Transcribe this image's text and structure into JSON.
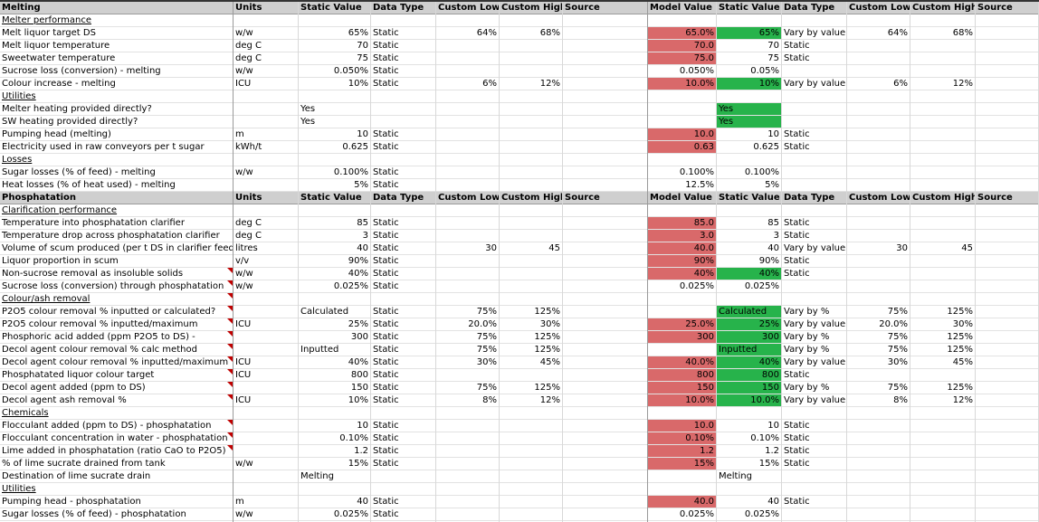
{
  "columns": {
    "c0": {
      "left": 0,
      "width": 258
    },
    "c1": {
      "left": 258,
      "width": 72
    },
    "c2": {
      "left": 330,
      "width": 80
    },
    "c3": {
      "left": 410,
      "width": 72
    },
    "c4": {
      "left": 482,
      "width": 70
    },
    "c5": {
      "left": 552,
      "width": 70
    },
    "c6": {
      "left": 622,
      "width": 94
    },
    "c7": {
      "left": 716,
      "width": 76
    },
    "c8": {
      "left": 792,
      "width": 72
    },
    "c9": {
      "left": 864,
      "width": 72
    },
    "c10": {
      "left": 936,
      "width": 70
    },
    "c11": {
      "left": 1006,
      "width": 72
    },
    "c12": {
      "left": 1078,
      "width": 70
    }
  },
  "rows": [
    {
      "type": "hdr",
      "c0": "Melting",
      "c1": "Units",
      "c2": "Static Value",
      "c3": "Data Type",
      "c4": "Custom Low",
      "c5": "Custom High",
      "c6": "Source",
      "c7": "Model Value",
      "c8": "Static Value",
      "c9": "Data Type",
      "c10": "Custom Low",
      "c11": "Custom High",
      "c12": "Source"
    },
    {
      "type": "sub",
      "c0": "Melter performance"
    },
    {
      "c0": "Melt liquor target DS",
      "c1": "w/w",
      "c2": "65%",
      "c3": "Static",
      "c4": "64%",
      "c5": "68%",
      "c7": "65.0%",
      "c7c": "red",
      "c8": "65%",
      "c8c": "green",
      "c9": "Vary by value",
      "c10": "64%",
      "c11": "68%"
    },
    {
      "c0": "Melt liquor temperature",
      "c1": "deg C",
      "c2": "70",
      "c3": "Static",
      "c7": "70.0",
      "c7c": "red",
      "c8": "70",
      "c9": "Static"
    },
    {
      "c0": "Sweetwater temperature",
      "c1": "deg C",
      "c2": "75",
      "c3": "Static",
      "c7": "75.0",
      "c7c": "red",
      "c8": "75",
      "c9": "Static"
    },
    {
      "c0": "Sucrose loss (conversion) - melting",
      "c1": "w/w",
      "c2": "0.050%",
      "c3": "Static",
      "c7": "0.050%",
      "c8": "0.05%"
    },
    {
      "c0": "Colour increase - melting",
      "c1": "ICU",
      "c2": "10%",
      "c3": "Static",
      "c4": "6%",
      "c5": "12%",
      "c7": "10.0%",
      "c7c": "red",
      "c8": "10%",
      "c8c": "green",
      "c9": "Vary by value",
      "c10": "6%",
      "c11": "12%"
    },
    {
      "type": "sub",
      "c0": "Utilities"
    },
    {
      "c0": "Melter heating provided directly?",
      "c2": "Yes",
      "c2a": "l",
      "c8": "Yes",
      "c8a": "l",
      "c8c": "green"
    },
    {
      "c0": "SW heating provided directly?",
      "c2": "Yes",
      "c2a": "l",
      "c8": "Yes",
      "c8a": "l",
      "c8c": "green"
    },
    {
      "c0": "Pumping head (melting)",
      "c1": "m",
      "c2": "10",
      "c3": "Static",
      "c7": "10.0",
      "c7c": "red",
      "c8": "10",
      "c9": "Static"
    },
    {
      "c0": "Electricity used in raw conveyors per t sugar",
      "c1": "kWh/t",
      "c2": "0.625",
      "c3": "Static",
      "c7": "0.63",
      "c7c": "red",
      "c8": "0.625",
      "c9": "Static"
    },
    {
      "type": "sub",
      "c0": "Losses"
    },
    {
      "c0": "Sugar losses (% of feed) - melting",
      "c1": "w/w",
      "c2": "0.100%",
      "c3": "Static",
      "c7": "0.100%",
      "c8": "0.100%"
    },
    {
      "c0": "Heat losses (% of heat used) - melting",
      "c2": "5%",
      "c3": "Static",
      "c7": "12.5%",
      "c8": "5%"
    },
    {
      "type": "hdr",
      "c0": "Phosphatation",
      "c1": "Units",
      "c2": "Static Value",
      "c3": "Data Type",
      "c4": "Custom Low",
      "c5": "Custom High",
      "c6": "Source",
      "c7": "Model Value",
      "c8": "Static Value",
      "c9": "Data Type",
      "c10": "Custom Low",
      "c11": "Custom High",
      "c12": "Source"
    },
    {
      "type": "sub",
      "c0": "Clarification performance"
    },
    {
      "c0": "Temperature into phosphatation clarifier",
      "c1": "deg C",
      "c2": "85",
      "c3": "Static",
      "c7": "85.0",
      "c7c": "red",
      "c8": "85",
      "c9": "Static"
    },
    {
      "c0": "Temperature drop across phosphatation clarifier",
      "c1": "deg C",
      "c2": "3",
      "c3": "Static",
      "c7": "3.0",
      "c7c": "red",
      "c8": "3",
      "c9": "Static"
    },
    {
      "c0": "Volume of scum produced (per t DS in clarifier feed)",
      "c1": "litres",
      "c2": "40",
      "c3": "Static",
      "c4": "30",
      "c5": "45",
      "c7": "40.0",
      "c7c": "red",
      "c8": "40",
      "c9": "Vary by value",
      "c10": "30",
      "c11": "45"
    },
    {
      "c0": "Liquor proportion in scum",
      "c1": "v/v",
      "c2": "90%",
      "c3": "Static",
      "c7": "90%",
      "c7c": "red",
      "c8": "90%",
      "c9": "Static"
    },
    {
      "c0": "Non-sucrose removal as insoluble solids",
      "c0t": true,
      "c1": "w/w",
      "c2": "40%",
      "c3": "Static",
      "c7": "40%",
      "c7c": "red",
      "c8": "40%",
      "c8c": "green",
      "c9": "Static"
    },
    {
      "c0": "Sucrose loss (conversion) through phosphatation",
      "c0t": true,
      "c1": "w/w",
      "c2": "0.025%",
      "c3": "Static",
      "c7": "0.025%",
      "c8": "0.025%"
    },
    {
      "type": "sub",
      "c0": "Colour/ash removal",
      "c0t": true
    },
    {
      "c0": "P2O5 colour removal % inputted or calculated?",
      "c0t": true,
      "c2": "Calculated",
      "c2a": "l",
      "c3": "Static",
      "c4": "75%",
      "c5": "125%",
      "c8": "Calculated",
      "c8a": "l",
      "c8c": "green",
      "c9": "Vary by %",
      "c10": "75%",
      "c11": "125%"
    },
    {
      "c0": "P2O5 colour removal % inputted/maximum",
      "c0t": true,
      "c1": "ICU",
      "c2": "25%",
      "c3": "Static",
      "c4": "20.0%",
      "c5": "30%",
      "c7": "25.0%",
      "c7c": "red",
      "c8": "25%",
      "c8c": "green",
      "c9": "Vary by value",
      "c10": "20.0%",
      "c11": "30%"
    },
    {
      "c0": "Phosphoric acid added (ppm P2O5 to DS) -",
      "c0t": true,
      "c2": "300",
      "c3": "Static",
      "c4": "75%",
      "c5": "125%",
      "c7": "300",
      "c7c": "red",
      "c8": "300",
      "c8c": "green",
      "c9": "Vary by %",
      "c10": "75%",
      "c11": "125%"
    },
    {
      "c0": "Decol agent colour removal % calc method",
      "c0t": true,
      "c2": "Inputted",
      "c2a": "l",
      "c3": "Static",
      "c4": "75%",
      "c5": "125%",
      "c8": "Inputted",
      "c8a": "l",
      "c8c": "green",
      "c9": "Vary by %",
      "c10": "75%",
      "c11": "125%"
    },
    {
      "c0": "Decol agent colour removal % inputted/maximum",
      "c0t": true,
      "c1": "ICU",
      "c2": "40%",
      "c3": "Static",
      "c4": "30%",
      "c5": "45%",
      "c7": "40.0%",
      "c7c": "red",
      "c8": "40%",
      "c8c": "green",
      "c9": "Vary by value",
      "c10": "30%",
      "c11": "45%"
    },
    {
      "c0": "Phosphatated liquor colour target",
      "c0t": true,
      "c1": "ICU",
      "c2": "800",
      "c3": "Static",
      "c7": "800",
      "c7c": "red",
      "c8": "800",
      "c8c": "green",
      "c9": "Static"
    },
    {
      "c0": "Decol agent added (ppm to DS)",
      "c0t": true,
      "c2": "150",
      "c3": "Static",
      "c4": "75%",
      "c5": "125%",
      "c7": "150",
      "c7c": "red",
      "c8": "150",
      "c8c": "green",
      "c9": "Vary by %",
      "c10": "75%",
      "c11": "125%"
    },
    {
      "c0": "Decol agent ash removal %",
      "c0t": true,
      "c1": "ICU",
      "c2": "10%",
      "c3": "Static",
      "c4": "8%",
      "c5": "12%",
      "c7": "10.0%",
      "c7c": "red",
      "c8": "10.0%",
      "c8c": "green",
      "c9": "Vary by value",
      "c10": "8%",
      "c11": "12%"
    },
    {
      "type": "sub",
      "c0": "Chemicals"
    },
    {
      "c0": "Flocculant added (ppm to DS) - phosphatation",
      "c0t": true,
      "c2": "10",
      "c3": "Static",
      "c7": "10.0",
      "c7c": "red",
      "c8": "10",
      "c9": "Static"
    },
    {
      "c0": "Flocculant concentration in water - phosphatation",
      "c0t": true,
      "c2": "0.10%",
      "c3": "Static",
      "c7": "0.10%",
      "c7c": "red",
      "c8": "0.10%",
      "c9": "Static"
    },
    {
      "c0": "Lime added in phosphatation (ratio CaO to P2O5)",
      "c0t": true,
      "c2": "1.2",
      "c3": "Static",
      "c7": "1.2",
      "c7c": "red",
      "c8": "1.2",
      "c9": "Static"
    },
    {
      "c0": "% of lime sucrate drained from tank",
      "c1": "w/w",
      "c2": "15%",
      "c3": "Static",
      "c7": "15%",
      "c7c": "red",
      "c8": "15%",
      "c9": "Static"
    },
    {
      "c0": "Destination of lime sucrate drain",
      "c2": "Melting",
      "c2a": "l",
      "c8": "Melting",
      "c8a": "l"
    },
    {
      "type": "sub",
      "c0": "Utilities"
    },
    {
      "c0": "Pumping head - phosphatation",
      "c1": "m",
      "c2": "40",
      "c3": "Static",
      "c7": "40.0",
      "c7c": "red",
      "c8": "40",
      "c9": "Static"
    },
    {
      "c0": "Sugar losses (% of feed) - phosphatation",
      "c1": "w/w",
      "c2": "0.025%",
      "c3": "Static",
      "c7": "0.025%",
      "c8": "0.025%"
    }
  ]
}
